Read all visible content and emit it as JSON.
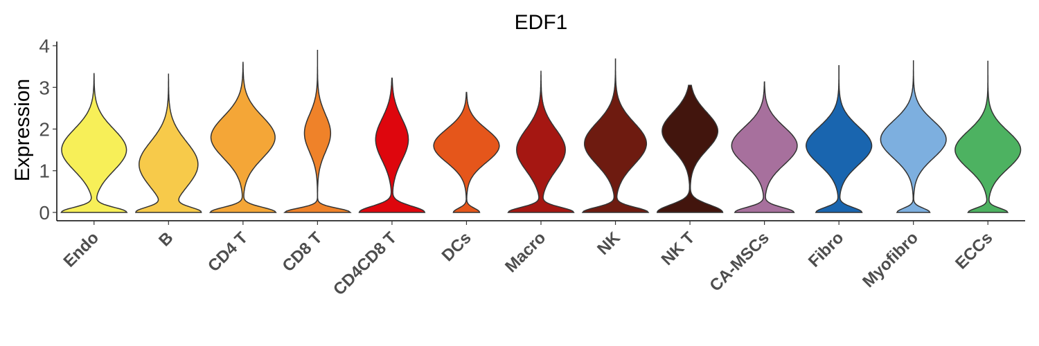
{
  "chart_data": {
    "type": "violin",
    "title": "EDF1",
    "xlabel": "",
    "ylabel": "Expression",
    "ylim": [
      -0.2,
      4.1
    ],
    "yticks": [
      0,
      1,
      2,
      3,
      4
    ],
    "grid": false,
    "legend": "none",
    "categories": [
      "Endo",
      "B",
      "CD4 T",
      "CD8 T",
      "CD4CD8 T",
      "DCs",
      "Macro",
      "NK",
      "NK T",
      "CA-MSCs",
      "Fibro",
      "Myofibro",
      "ECCs"
    ],
    "series": [
      {
        "category": "Endo",
        "color": "#F7EF58",
        "max": 3.33,
        "modes": [
          {
            "mu": 0.0,
            "sd": 0.12,
            "w": 1.0
          },
          {
            "mu": 1.5,
            "sd": 0.5,
            "w": 1.0
          }
        ]
      },
      {
        "category": "B",
        "color": "#F7CA4A",
        "max": 3.33,
        "modes": [
          {
            "mu": 0.0,
            "sd": 0.12,
            "w": 1.0
          },
          {
            "mu": 1.15,
            "sd": 0.55,
            "w": 1.0
          }
        ]
      },
      {
        "category": "CD4 T",
        "color": "#F4A637",
        "max": 3.6,
        "modes": [
          {
            "mu": 0.0,
            "sd": 0.12,
            "w": 1.0
          },
          {
            "mu": 1.8,
            "sd": 0.5,
            "w": 0.98
          }
        ]
      },
      {
        "category": "CD8 T",
        "color": "#EF8229",
        "max": 3.9,
        "modes": [
          {
            "mu": 0.0,
            "sd": 0.1,
            "w": 1.0
          },
          {
            "mu": 1.9,
            "sd": 0.45,
            "w": 0.4
          }
        ]
      },
      {
        "category": "CD4CD8 T",
        "color": "#DE060D",
        "max": 3.22,
        "modes": [
          {
            "mu": 0.0,
            "sd": 0.15,
            "w": 1.0
          },
          {
            "mu": 1.75,
            "sd": 0.5,
            "w": 0.5
          }
        ]
      },
      {
        "category": "DCs",
        "color": "#E5561B",
        "max": 2.88,
        "modes": [
          {
            "mu": 0.0,
            "sd": 0.1,
            "w": 0.4
          },
          {
            "mu": 1.6,
            "sd": 0.4,
            "w": 1.0
          }
        ]
      },
      {
        "category": "Macro",
        "color": "#A51712",
        "max": 3.4,
        "modes": [
          {
            "mu": 0.0,
            "sd": 0.12,
            "w": 1.0
          },
          {
            "mu": 1.5,
            "sd": 0.5,
            "w": 0.75
          }
        ]
      },
      {
        "category": "NK",
        "color": "#6E1B10",
        "max": 3.68,
        "modes": [
          {
            "mu": 0.0,
            "sd": 0.12,
            "w": 1.0
          },
          {
            "mu": 1.65,
            "sd": 0.5,
            "w": 0.95
          }
        ]
      },
      {
        "category": "NK T",
        "color": "#42150D",
        "max": 3.05,
        "modes": [
          {
            "mu": 0.0,
            "sd": 0.18,
            "w": 1.0
          },
          {
            "mu": 1.95,
            "sd": 0.45,
            "w": 0.85
          }
        ]
      },
      {
        "category": "CA-MSCs",
        "color": "#A7709D",
        "max": 3.13,
        "modes": [
          {
            "mu": 0.0,
            "sd": 0.12,
            "w": 0.9
          },
          {
            "mu": 1.6,
            "sd": 0.45,
            "w": 1.0
          }
        ]
      },
      {
        "category": "Fibro",
        "color": "#1965AF",
        "max": 3.52,
        "modes": [
          {
            "mu": 0.0,
            "sd": 0.12,
            "w": 0.7
          },
          {
            "mu": 1.6,
            "sd": 0.45,
            "w": 1.0
          }
        ]
      },
      {
        "category": "Myofibro",
        "color": "#7DAFDF",
        "max": 3.65,
        "modes": [
          {
            "mu": 0.0,
            "sd": 0.1,
            "w": 0.5
          },
          {
            "mu": 1.75,
            "sd": 0.45,
            "w": 1.0
          }
        ]
      },
      {
        "category": "ECCs",
        "color": "#4DB261",
        "max": 3.64,
        "modes": [
          {
            "mu": 0.0,
            "sd": 0.1,
            "w": 0.6
          },
          {
            "mu": 1.5,
            "sd": 0.45,
            "w": 1.0
          }
        ]
      }
    ]
  }
}
